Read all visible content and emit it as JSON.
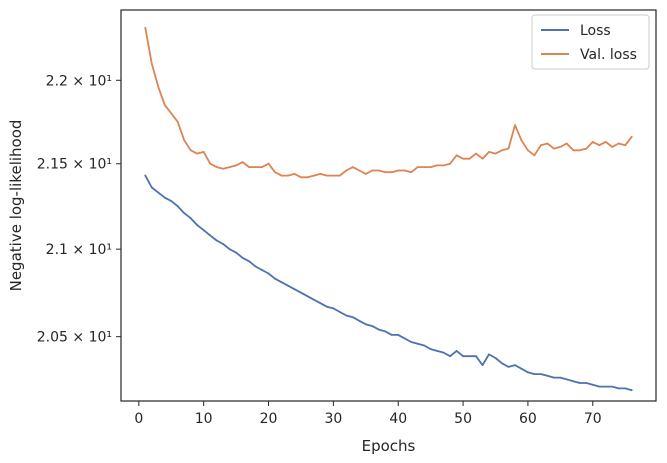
{
  "chart_data": {
    "type": "line",
    "xlabel": "Epochs",
    "ylabel": "Negative log-likelihood",
    "xlim": [
      -2.75,
      79.75
    ],
    "ylim": [
      20.14,
      22.43
    ],
    "y_scale": "log",
    "grid": false,
    "legend_position": "top-right",
    "x_ticks": [
      0,
      10,
      20,
      30,
      40,
      50,
      60,
      70
    ],
    "y_ticks": [
      {
        "value": 20.5,
        "label": "2.05 × 10¹"
      },
      {
        "value": 21.0,
        "label": "2.1 × 10¹"
      },
      {
        "value": 21.5,
        "label": "2.15 × 10¹"
      },
      {
        "value": 22.0,
        "label": "2.2 × 10¹"
      }
    ],
    "series": [
      {
        "name": "Loss",
        "color": "#4c72b0",
        "x": [
          1,
          2,
          3,
          4,
          5,
          6,
          7,
          8,
          9,
          10,
          11,
          12,
          13,
          14,
          15,
          16,
          17,
          18,
          19,
          20,
          21,
          22,
          23,
          24,
          25,
          26,
          27,
          28,
          29,
          30,
          31,
          32,
          33,
          34,
          35,
          36,
          37,
          38,
          39,
          40,
          41,
          42,
          43,
          44,
          45,
          46,
          47,
          48,
          49,
          50,
          51,
          52,
          53,
          54,
          55,
          56,
          57,
          58,
          59,
          60,
          61,
          62,
          63,
          64,
          65,
          66,
          67,
          68,
          69,
          70,
          71,
          72,
          73,
          74,
          75,
          76
        ],
        "values": [
          21.43,
          21.36,
          21.33,
          21.3,
          21.28,
          21.25,
          21.21,
          21.18,
          21.14,
          21.11,
          21.08,
          21.05,
          21.03,
          21.0,
          20.98,
          20.95,
          20.93,
          20.9,
          20.88,
          20.86,
          20.83,
          20.81,
          20.79,
          20.77,
          20.75,
          20.73,
          20.71,
          20.69,
          20.67,
          20.66,
          20.64,
          20.62,
          20.61,
          20.59,
          20.57,
          20.56,
          20.54,
          20.53,
          20.51,
          20.51,
          20.49,
          20.47,
          20.46,
          20.45,
          20.43,
          20.42,
          20.41,
          20.39,
          20.42,
          20.39,
          20.39,
          20.39,
          20.34,
          20.4,
          20.38,
          20.35,
          20.33,
          20.34,
          20.32,
          20.3,
          20.29,
          20.29,
          20.28,
          20.27,
          20.27,
          20.26,
          20.25,
          20.24,
          20.24,
          20.23,
          20.22,
          20.22,
          20.22,
          20.21,
          20.21,
          20.2
        ]
      },
      {
        "name": "Val. loss",
        "color": "#dd8452",
        "x": [
          1,
          2,
          3,
          4,
          5,
          6,
          7,
          8,
          9,
          10,
          11,
          12,
          13,
          14,
          15,
          16,
          17,
          18,
          19,
          20,
          21,
          22,
          23,
          24,
          25,
          26,
          27,
          28,
          29,
          30,
          31,
          32,
          33,
          34,
          35,
          36,
          37,
          38,
          39,
          40,
          41,
          42,
          43,
          44,
          45,
          46,
          47,
          48,
          49,
          50,
          51,
          52,
          53,
          54,
          55,
          56,
          57,
          58,
          59,
          60,
          61,
          62,
          63,
          64,
          65,
          66,
          67,
          68,
          69,
          70,
          71,
          72,
          73,
          74,
          75,
          76
        ],
        "values": [
          22.32,
          22.1,
          21.96,
          21.85,
          21.8,
          21.75,
          21.64,
          21.58,
          21.56,
          21.57,
          21.5,
          21.48,
          21.47,
          21.48,
          21.49,
          21.51,
          21.48,
          21.48,
          21.48,
          21.5,
          21.45,
          21.43,
          21.43,
          21.44,
          21.42,
          21.42,
          21.43,
          21.44,
          21.43,
          21.43,
          21.43,
          21.46,
          21.48,
          21.46,
          21.44,
          21.46,
          21.46,
          21.45,
          21.45,
          21.46,
          21.46,
          21.45,
          21.48,
          21.48,
          21.48,
          21.49,
          21.49,
          21.5,
          21.55,
          21.53,
          21.53,
          21.56,
          21.53,
          21.57,
          21.56,
          21.58,
          21.59,
          21.73,
          21.64,
          21.58,
          21.55,
          21.61,
          21.62,
          21.59,
          21.6,
          21.62,
          21.58,
          21.58,
          21.59,
          21.63,
          21.61,
          21.63,
          21.6,
          21.62,
          21.61,
          21.66
        ]
      }
    ]
  }
}
